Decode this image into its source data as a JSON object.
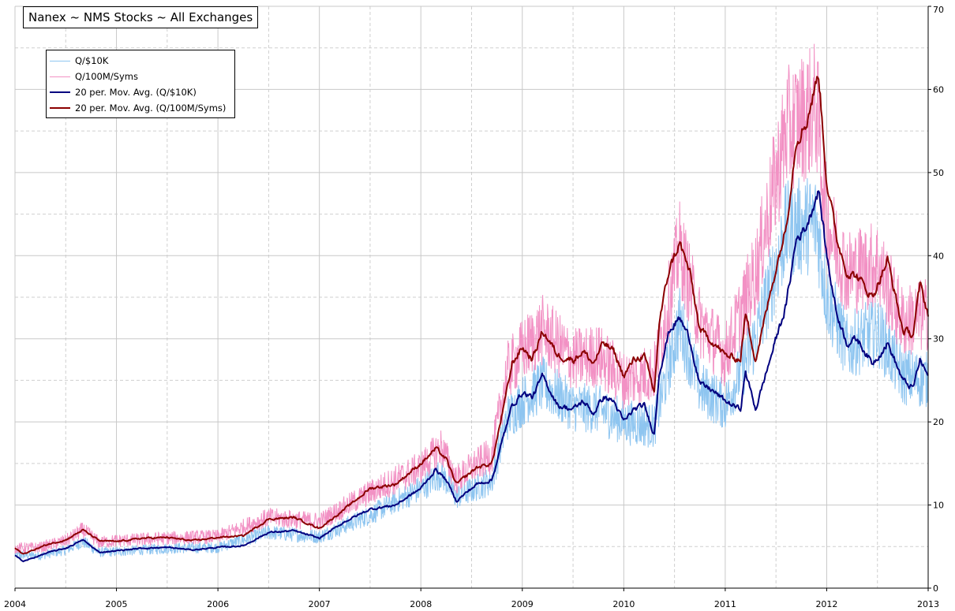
{
  "chart_data": {
    "type": "line",
    "title": "Nanex ~ NMS Stocks ~ All Exchanges",
    "xlabel": "",
    "ylabel": "",
    "xlim": [
      2004,
      2013
    ],
    "ylim": [
      0,
      70
    ],
    "x_ticks": [
      "2004",
      "2005",
      "2006",
      "2007",
      "2008",
      "2009",
      "2010",
      "2011",
      "2012",
      "2013"
    ],
    "y_ticks": [
      "0",
      "10",
      "20",
      "30",
      "40",
      "50",
      "60",
      "70"
    ],
    "grid": true,
    "legend_position": "top-left",
    "series": [
      {
        "name": "Q/$10K",
        "color": "#8ec5f0",
        "style": "daily",
        "x": [
          2004.0,
          2004.25,
          2004.5,
          2004.67,
          2004.83,
          2005.0,
          2005.5,
          2006.0,
          2006.5,
          2007.0,
          2007.5,
          2008.0,
          2008.2,
          2008.35,
          2008.5,
          2008.7,
          2008.85,
          2009.0,
          2009.2,
          2009.5,
          2009.75,
          2010.0,
          2010.3,
          2010.55,
          2010.75,
          2011.0,
          2011.3,
          2011.6,
          2011.9,
          2012.0,
          2012.2,
          2012.5,
          2012.75,
          2013.0
        ],
        "values": [
          4.0,
          3.9,
          4.6,
          5.6,
          4.3,
          4.4,
          4.8,
          4.9,
          6.7,
          6.2,
          8.8,
          12.0,
          13.8,
          11.0,
          11.8,
          13.0,
          20.5,
          22.5,
          24.5,
          21.8,
          21.5,
          20.0,
          19.5,
          32.0,
          24.0,
          22.0,
          30.0,
          43.0,
          44.0,
          35.0,
          29.0,
          31.0,
          25.5,
          25.0
        ]
      },
      {
        "name": "Q/100M/Syms",
        "color": "#f291c4",
        "style": "daily",
        "x": [
          2004.0,
          2004.25,
          2004.5,
          2004.67,
          2004.83,
          2005.0,
          2005.5,
          2006.0,
          2006.5,
          2007.0,
          2007.5,
          2008.0,
          2008.2,
          2008.35,
          2008.5,
          2008.7,
          2008.85,
          2009.0,
          2009.2,
          2009.5,
          2009.75,
          2010.0,
          2010.3,
          2010.55,
          2010.75,
          2011.0,
          2011.3,
          2011.6,
          2011.9,
          2012.0,
          2012.2,
          2012.5,
          2012.75,
          2013.0
        ],
        "values": [
          4.8,
          4.9,
          5.7,
          7.0,
          5.5,
          5.7,
          6.0,
          6.2,
          8.5,
          8.0,
          11.5,
          14.5,
          17.0,
          13.0,
          14.5,
          16.0,
          26.0,
          28.5,
          31.0,
          27.5,
          28.0,
          25.0,
          26.0,
          41.0,
          32.0,
          28.0,
          38.0,
          55.0,
          58.0,
          44.0,
          38.0,
          39.0,
          32.0,
          33.0
        ]
      },
      {
        "name": "20 per. Mov. Avg. (Q/$10K)",
        "color": "#00007f",
        "style": "avg",
        "x": [
          2004.0,
          2004.08,
          2004.33,
          2004.5,
          2004.67,
          2004.83,
          2005.0,
          2005.25,
          2005.5,
          2005.75,
          2006.0,
          2006.25,
          2006.5,
          2006.75,
          2007.0,
          2007.25,
          2007.5,
          2007.75,
          2008.0,
          2008.15,
          2008.25,
          2008.35,
          2008.45,
          2008.55,
          2008.7,
          2008.82,
          2008.9,
          2009.0,
          2009.1,
          2009.2,
          2009.35,
          2009.5,
          2009.6,
          2009.7,
          2009.8,
          2009.9,
          2010.0,
          2010.1,
          2010.2,
          2010.3,
          2010.35,
          2010.45,
          2010.55,
          2010.65,
          2010.75,
          2010.85,
          2011.0,
          2011.15,
          2011.2,
          2011.3,
          2011.5,
          2011.6,
          2011.7,
          2011.8,
          2011.92,
          2012.0,
          2012.1,
          2012.2,
          2012.3,
          2012.45,
          2012.6,
          2012.75,
          2012.85,
          2012.92,
          2013.0
        ],
        "values": [
          4.0,
          3.2,
          4.3,
          4.8,
          5.8,
          4.3,
          4.5,
          4.8,
          4.9,
          4.6,
          4.9,
          5.1,
          6.7,
          6.9,
          6.0,
          8.0,
          9.5,
          10.0,
          12.0,
          14.3,
          13.0,
          10.5,
          11.5,
          12.5,
          13.0,
          18.5,
          22.0,
          23.5,
          23.0,
          25.5,
          22.0,
          21.5,
          22.5,
          21.0,
          23.0,
          22.5,
          20.0,
          21.5,
          22.0,
          18.5,
          26.0,
          31.0,
          32.5,
          30.0,
          24.5,
          24.0,
          22.5,
          21.5,
          26.0,
          21.5,
          30.0,
          34.0,
          42.0,
          43.5,
          48.0,
          40.0,
          33.0,
          29.5,
          30.0,
          27.0,
          29.5,
          25.0,
          24.0,
          27.5,
          25.5
        ]
      },
      {
        "name": "20 per. Mov. Avg. (Q/100M/Syms)",
        "color": "#8b0000",
        "style": "avg",
        "x": [
          2004.0,
          2004.08,
          2004.33,
          2004.5,
          2004.67,
          2004.83,
          2005.0,
          2005.25,
          2005.5,
          2005.75,
          2006.0,
          2006.25,
          2006.5,
          2006.75,
          2007.0,
          2007.25,
          2007.5,
          2007.75,
          2008.0,
          2008.15,
          2008.25,
          2008.35,
          2008.45,
          2008.55,
          2008.7,
          2008.82,
          2008.9,
          2009.0,
          2009.1,
          2009.2,
          2009.35,
          2009.5,
          2009.6,
          2009.7,
          2009.8,
          2009.9,
          2010.0,
          2010.1,
          2010.2,
          2010.3,
          2010.35,
          2010.45,
          2010.55,
          2010.65,
          2010.75,
          2010.85,
          2011.0,
          2011.15,
          2011.2,
          2011.3,
          2011.5,
          2011.6,
          2011.7,
          2011.8,
          2011.92,
          2012.0,
          2012.1,
          2012.2,
          2012.3,
          2012.45,
          2012.6,
          2012.75,
          2012.85,
          2012.92,
          2013.0
        ],
        "values": [
          4.8,
          4.1,
          5.3,
          5.8,
          7.0,
          5.7,
          5.6,
          6.0,
          6.1,
          5.7,
          6.1,
          6.3,
          8.3,
          8.5,
          7.2,
          9.5,
          12.0,
          12.5,
          15.0,
          16.8,
          15.5,
          12.5,
          13.5,
          14.5,
          15.0,
          22.0,
          27.0,
          29.0,
          27.5,
          31.0,
          28.0,
          27.5,
          28.5,
          27.0,
          29.5,
          28.5,
          25.5,
          27.5,
          28.0,
          23.5,
          32.0,
          38.5,
          41.5,
          38.0,
          31.0,
          30.0,
          28.0,
          27.5,
          33.0,
          27.5,
          38.5,
          43.5,
          54.0,
          56.0,
          62.0,
          49.0,
          42.0,
          38.0,
          37.5,
          35.0,
          39.5,
          31.0,
          30.5,
          36.5,
          33.0
        ]
      }
    ]
  }
}
